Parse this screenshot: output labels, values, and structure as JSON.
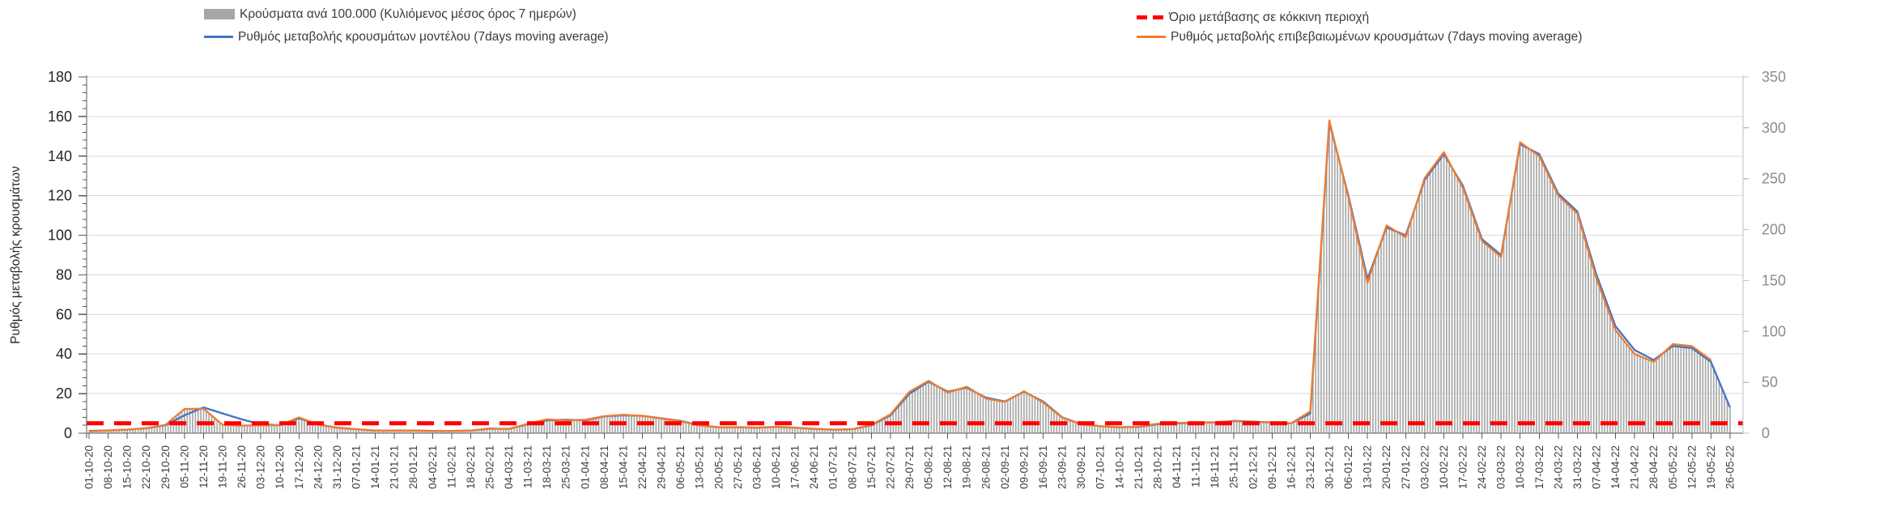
{
  "chart_data": {
    "type": "bar+line",
    "title": "",
    "x_label_format": "dd-mm-yy (weekly)",
    "x": [
      "01-10-20",
      "08-10-20",
      "15-10-20",
      "22-10-20",
      "29-10-20",
      "05-11-20",
      "12-11-20",
      "19-11-20",
      "26-11-20",
      "03-12-20",
      "10-12-20",
      "17-12-20",
      "24-12-20",
      "31-12-20",
      "07-01-21",
      "14-01-21",
      "21-01-21",
      "28-01-21",
      "04-02-21",
      "11-02-21",
      "18-02-21",
      "25-02-21",
      "04-03-21",
      "11-03-21",
      "18-03-21",
      "25-03-21",
      "01-04-21",
      "08-04-21",
      "15-04-21",
      "22-04-21",
      "29-04-21",
      "06-05-21",
      "13-05-21",
      "20-05-21",
      "27-05-21",
      "03-06-21",
      "10-06-21",
      "17-06-21",
      "24-06-21",
      "01-07-21",
      "08-07-21",
      "15-07-21",
      "22-07-21",
      "29-07-21",
      "05-08-21",
      "12-08-21",
      "19-08-21",
      "26-08-21",
      "02-09-21",
      "09-09-21",
      "16-09-21",
      "23-09-21",
      "30-09-21",
      "07-10-21",
      "14-10-21",
      "21-10-21",
      "28-10-21",
      "04-11-21",
      "11-11-21",
      "18-11-21",
      "25-11-21",
      "02-12-21",
      "09-12-21",
      "16-12-21",
      "23-12-21",
      "30-12-21",
      "06-01-22",
      "13-01-22",
      "20-01-22",
      "27-01-22",
      "03-02-22",
      "10-02-22",
      "17-02-22",
      "24-02-22",
      "03-03-22",
      "10-03-22",
      "17-03-22",
      "24-03-22",
      "31-03-22",
      "07-04-22",
      "14-04-22",
      "21-04-22",
      "28-04-22",
      "05-05-22",
      "12-05-22",
      "19-05-22",
      "26-05-22"
    ],
    "series": [
      {
        "name": "Κρούσματα ανά 100.000 (Κυλιόμενος μέσος όρος 7 ημερών)",
        "type": "bar",
        "axis": "right",
        "color": "#a8a8a8",
        "values": [
          2,
          3,
          3,
          5,
          8,
          24,
          24,
          8,
          7,
          9,
          8,
          16,
          9,
          5,
          4,
          3,
          3,
          3,
          2,
          2,
          3,
          4,
          4,
          9,
          13,
          13,
          13,
          17,
          18,
          17,
          15,
          12,
          8,
          6,
          6,
          5,
          6,
          5,
          4,
          3,
          4,
          8,
          17,
          39,
          52,
          41,
          45,
          35,
          31,
          41,
          31,
          16,
          9,
          7,
          6,
          6,
          9,
          10,
          10,
          11,
          12,
          11,
          11,
          10,
          19,
          307,
          233,
          152,
          202,
          194,
          249,
          274,
          243,
          190,
          175,
          284,
          274,
          235,
          218,
          152,
          101,
          78,
          70,
          87,
          86,
          72,
          25
        ]
      },
      {
        "name": "Ρυθμός μεταβολής κρουσμάτων μοντέλου (7days moving average)",
        "type": "line",
        "axis": "left",
        "color": "#4472c4",
        "values": [
          1.2,
          1.4,
          1.8,
          2.5,
          4,
          9,
          13,
          10,
          7,
          4.5,
          4,
          7.5,
          4.5,
          2.8,
          2,
          1.3,
          1.3,
          1.3,
          1.2,
          1.2,
          1.3,
          2.3,
          2.2,
          4.5,
          6.5,
          6.8,
          6.5,
          8.5,
          9,
          8.8,
          7.5,
          6.2,
          4,
          3,
          3,
          2.8,
          3.2,
          2.8,
          2.2,
          1.8,
          2,
          4,
          9,
          20,
          26,
          21,
          23,
          18,
          16,
          21,
          16,
          8,
          4.6,
          3.5,
          3,
          3.2,
          4.5,
          5,
          5.2,
          5.5,
          6.2,
          5.8,
          5.5,
          5,
          10,
          157,
          120,
          78,
          104,
          100,
          128,
          141,
          125,
          98,
          90,
          146,
          141,
          121,
          112,
          80,
          54,
          42,
          37,
          44,
          43,
          36,
          13
        ]
      },
      {
        "name": "Ρυθμός μεταβολής επιβεβαιωμένων κρουσμάτων (7days moving average)",
        "type": "line",
        "axis": "left",
        "color": "#ed7d31",
        "values": [
          1,
          1.3,
          1.8,
          2.5,
          4.2,
          12.2,
          12.4,
          4.2,
          3.8,
          4,
          4,
          8,
          4.3,
          2.8,
          2,
          1.3,
          1.3,
          1.3,
          1.2,
          1.2,
          1.3,
          2.4,
          2.1,
          4.8,
          7,
          6.4,
          6.8,
          8.6,
          9.3,
          8.7,
          7.4,
          6,
          3.9,
          3,
          2.9,
          2.8,
          3.1,
          2.7,
          2.2,
          1.8,
          2,
          4.2,
          9.5,
          21,
          26.5,
          20.5,
          23.5,
          17.5,
          15.8,
          21.2,
          15.5,
          7.8,
          4.5,
          3.5,
          3,
          3.3,
          4.8,
          5.2,
          5.3,
          5.6,
          6,
          5.7,
          5.4,
          5,
          11,
          158,
          119,
          76,
          105,
          99,
          129,
          142,
          124,
          97,
          89,
          147,
          140,
          120,
          111,
          78,
          52,
          40,
          36,
          45,
          44,
          37,
          null
        ]
      },
      {
        "name": "Όριο μετάβασης σε κόκκινη περιοχή",
        "type": "threshold",
        "axis": "left",
        "color": "#ff0000",
        "value": 5
      }
    ],
    "left_axis": {
      "label": "Ρυθμός μεταβολής κρουσμάτων",
      "min": 0,
      "max": 180,
      "step": 20,
      "ticks": [
        0,
        20,
        40,
        60,
        80,
        100,
        120,
        140,
        160,
        180
      ],
      "minor_step": 4,
      "tick_color": "#262626"
    },
    "right_axis": {
      "label": "",
      "min": 0,
      "max": 350,
      "step": 50,
      "ticks": [
        0,
        50,
        100,
        150,
        200,
        250,
        300,
        350
      ],
      "tick_color": "#8c8c8c"
    },
    "grid": true,
    "legend_position": "top",
    "colors": {
      "bars": "#a8a8a8",
      "model_line": "#4472c4",
      "confirmed_line": "#ed7d31",
      "threshold_line": "#ff0000",
      "gridline": "#d9d9d9",
      "axis": "#595959",
      "right_axis_line": "#bfbfbf"
    }
  }
}
